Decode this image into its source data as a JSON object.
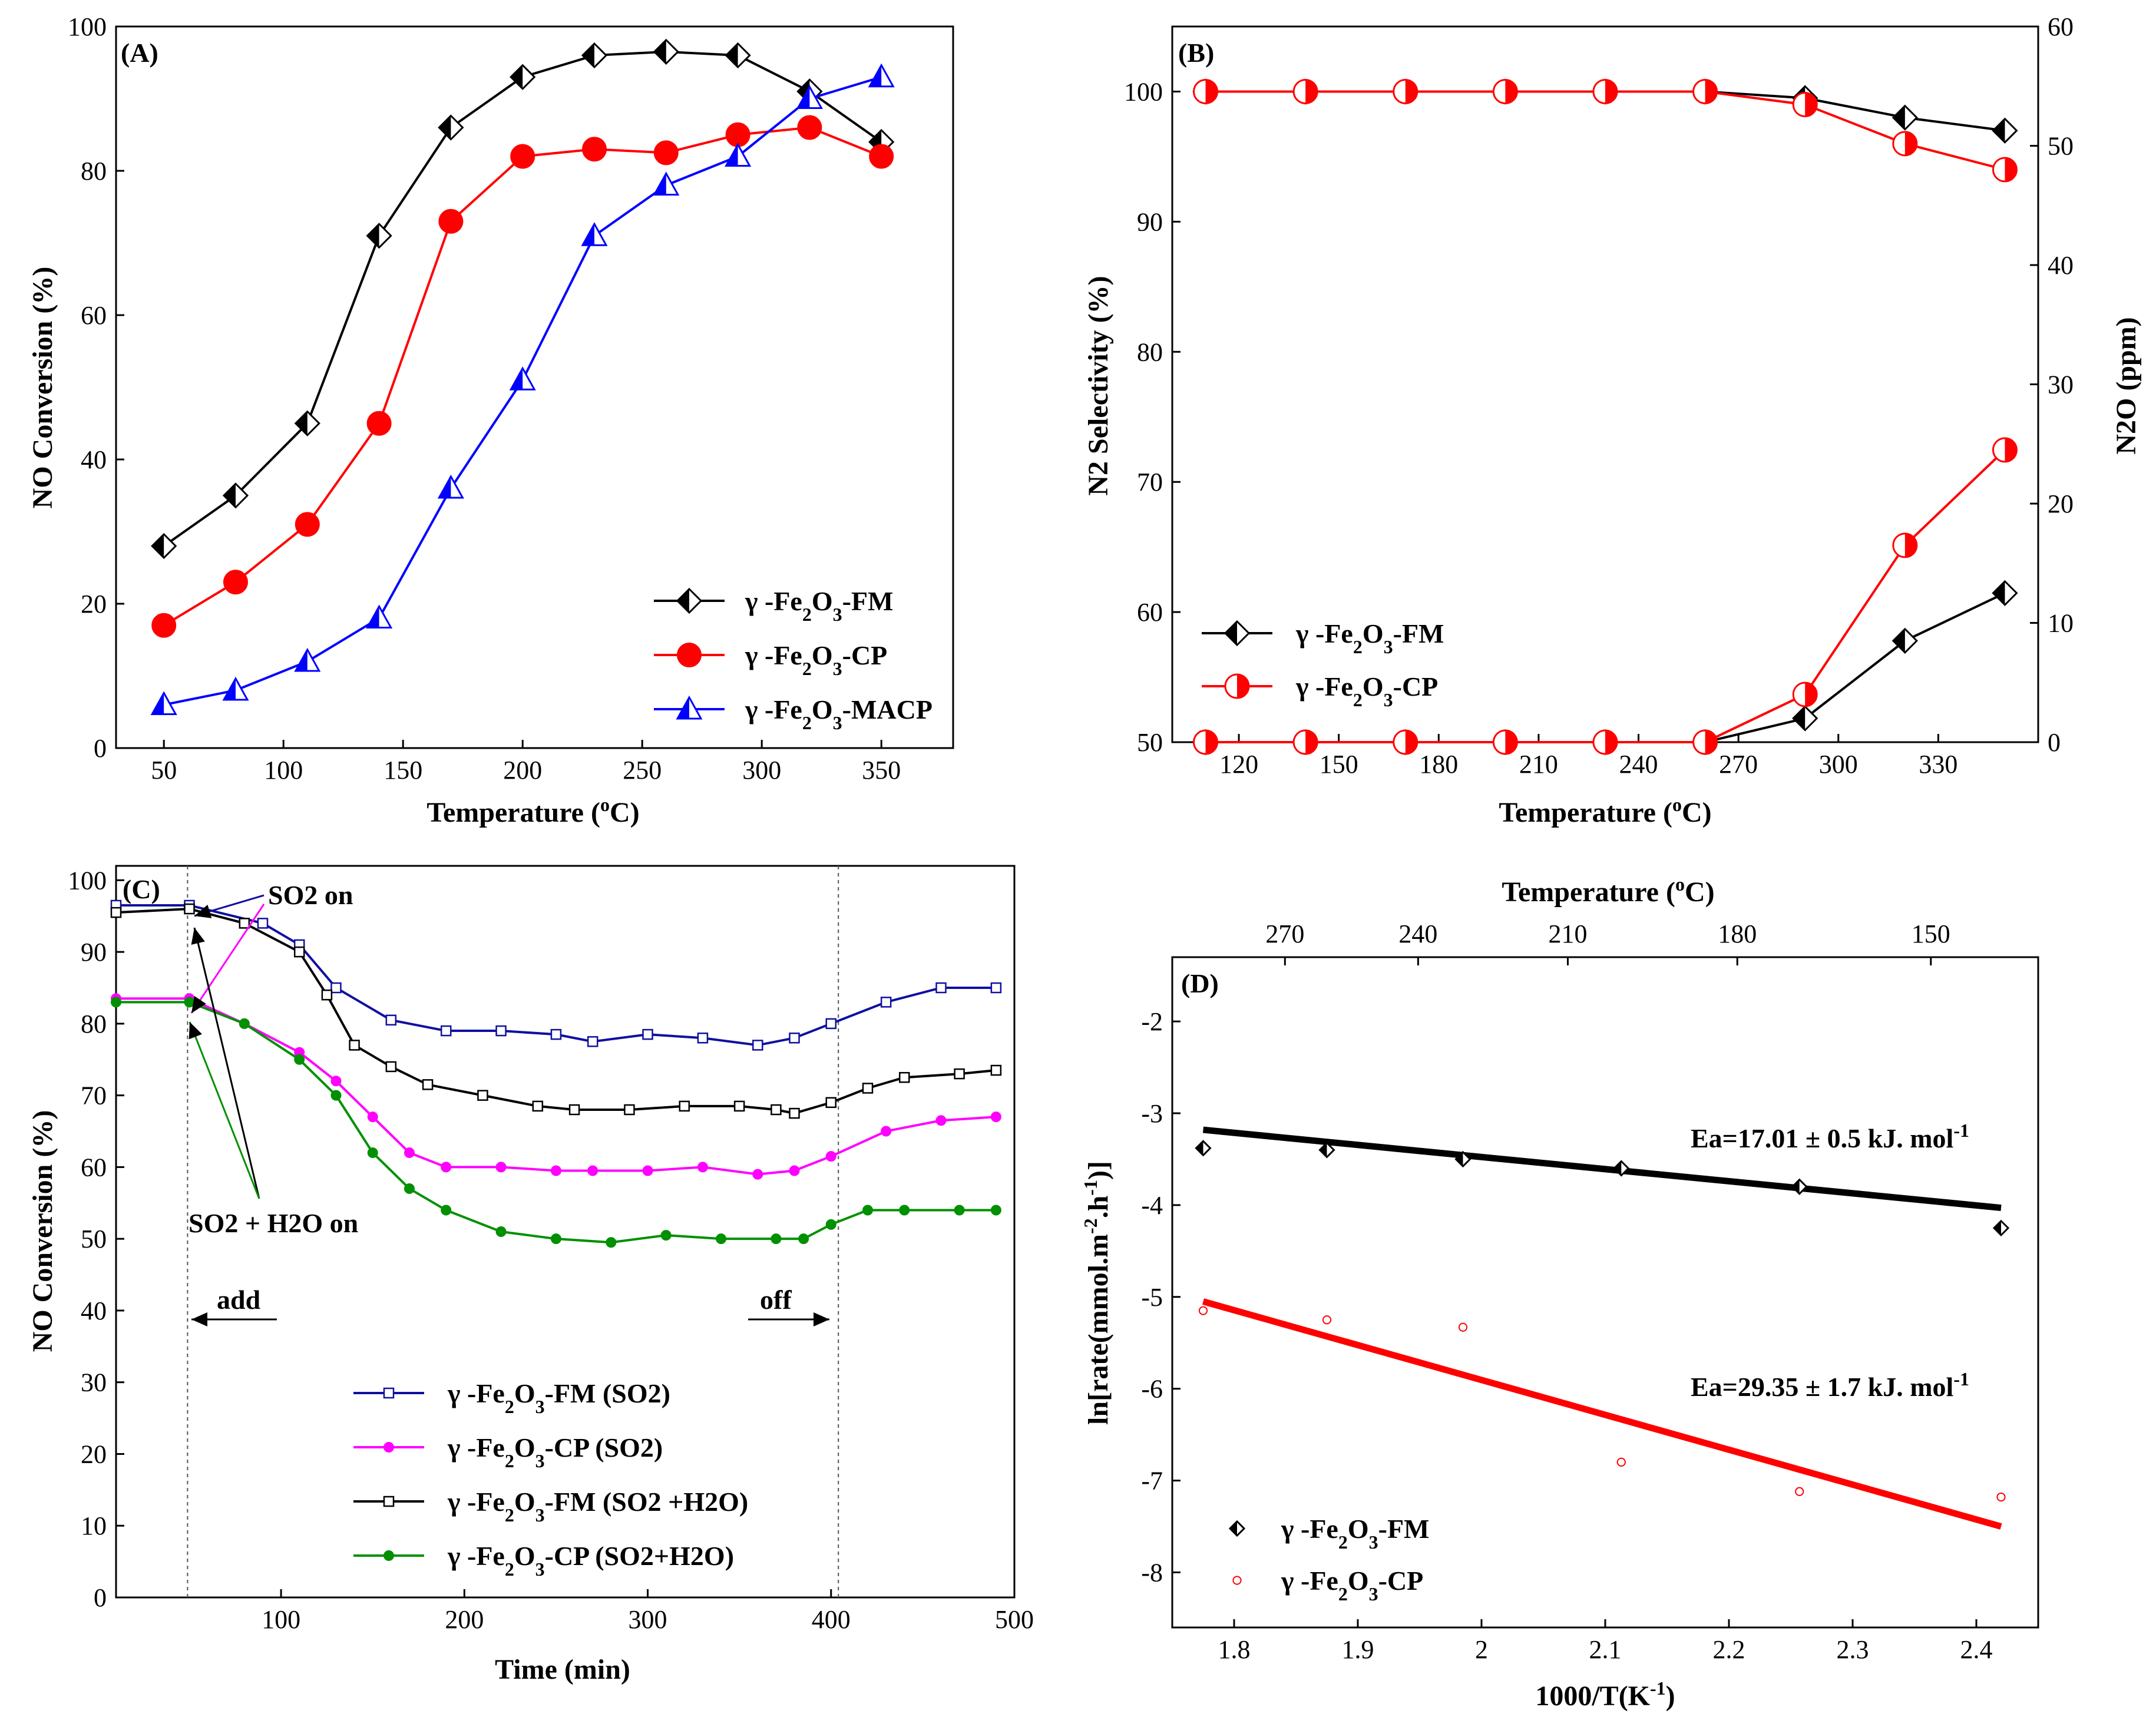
{
  "chart_data": [
    {
      "panel": "(A)",
      "type": "line",
      "xlabel": "Temperature (°C)",
      "ylabel": "NO Conversion (%)",
      "xlim": [
        30,
        380
      ],
      "ylim": [
        0,
        100
      ],
      "xticks": [
        50,
        100,
        150,
        200,
        250,
        300,
        350
      ],
      "yticks": [
        0,
        20,
        40,
        60,
        80,
        100
      ],
      "legend_position": "bottom-right",
      "series": [
        {
          "name": "γ -Fe2O3-FM",
          "legend": {
            "pre": "γ -Fe",
            "s1": "2",
            "mid": "O",
            "s2": "3",
            "post": "-FM"
          },
          "color": "#000000",
          "marker": "half-diamond",
          "x": [
            50,
            80,
            110,
            140,
            170,
            200,
            230,
            260,
            290,
            320,
            350
          ],
          "y": [
            28,
            35,
            45,
            71,
            86,
            93,
            96,
            96.5,
            96,
            91,
            84
          ]
        },
        {
          "name": "γ -Fe2O3-CP",
          "legend": {
            "pre": "γ -Fe",
            "s1": "2",
            "mid": "O",
            "s2": "3",
            "post": "-CP"
          },
          "color": "#ff0000",
          "marker": "circle",
          "x": [
            50,
            80,
            110,
            140,
            170,
            200,
            230,
            260,
            290,
            320,
            350
          ],
          "y": [
            17,
            23,
            31,
            45,
            73,
            82,
            83,
            82.5,
            85,
            86,
            82
          ]
        },
        {
          "name": "γ -Fe2O3-MACP",
          "legend": {
            "pre": "γ -Fe",
            "s1": "2",
            "mid": "O",
            "s2": "3",
            "post": "-MACP"
          },
          "color": "#0000ff",
          "marker": "half-triangle",
          "x": [
            50,
            80,
            110,
            140,
            170,
            200,
            230,
            260,
            290,
            320,
            350
          ],
          "y": [
            6,
            8,
            12,
            18,
            36,
            51,
            71,
            78,
            82,
            90,
            93
          ]
        }
      ]
    },
    {
      "panel": "(B)",
      "type": "line",
      "xlabel": "Temperature (°C)",
      "ylabel_left": "N2 Selectivity (%)",
      "ylabel_right": "N2O (ppm)",
      "xlim": [
        100,
        360
      ],
      "ylim_left": [
        50,
        105
      ],
      "ylim_right": [
        0,
        60
      ],
      "xticks": [
        120,
        150,
        180,
        210,
        240,
        270,
        300,
        330
      ],
      "yticks_left": [
        50,
        60,
        70,
        80,
        90,
        100
      ],
      "yticks_right": [
        0,
        10,
        20,
        30,
        40,
        50,
        60
      ],
      "legend_position": "bottom-left",
      "series": [
        {
          "name": "γ -Fe2O3-FM",
          "legend": {
            "pre": "γ -Fe",
            "s1": "2",
            "mid": "O",
            "s2": "3",
            "post": "-FM"
          },
          "color": "#000000",
          "marker": "half-diamond",
          "axis": "left",
          "x": [
            110,
            140,
            170,
            200,
            230,
            260,
            290,
            320,
            350
          ],
          "y": [
            100,
            100,
            100,
            100,
            100,
            100,
            99.5,
            98,
            97
          ]
        },
        {
          "name": "γ -Fe2O3-CP",
          "legend": {
            "pre": "γ -Fe",
            "s1": "2",
            "mid": "O",
            "s2": "3",
            "post": "-CP"
          },
          "color": "#ff0000",
          "marker": "half-circle",
          "axis": "left",
          "x": [
            110,
            140,
            170,
            200,
            230,
            260,
            290,
            320,
            350
          ],
          "y": [
            100,
            100,
            100,
            100,
            100,
            100,
            99,
            96,
            94
          ]
        },
        {
          "name": "γ -Fe2O3-FM N2O",
          "color": "#000000",
          "marker": "half-diamond",
          "axis": "right",
          "x": [
            110,
            140,
            170,
            200,
            230,
            260,
            290,
            320,
            350
          ],
          "y": [
            0,
            0,
            0,
            0,
            0,
            0,
            2,
            8.5,
            12.5
          ]
        },
        {
          "name": "γ -Fe2O3-CP N2O",
          "color": "#ff0000",
          "marker": "half-circle",
          "axis": "right",
          "x": [
            110,
            140,
            170,
            200,
            230,
            260,
            290,
            320,
            350
          ],
          "y": [
            0,
            0,
            0,
            0,
            0,
            0,
            4,
            16.5,
            24.5
          ]
        }
      ]
    },
    {
      "panel": "(C)",
      "type": "line",
      "xlabel": "Time (min)",
      "ylabel": "NO Conversion (%)",
      "xlim": [
        10,
        500
      ],
      "ylim": [
        0,
        102
      ],
      "xticks": [
        100,
        200,
        300,
        400,
        500
      ],
      "yticks": [
        0,
        10,
        20,
        30,
        40,
        50,
        60,
        70,
        80,
        90,
        100
      ],
      "legend_position": "bottom-center",
      "vlines": [
        49,
        404
      ],
      "annotations": {
        "so2_on": "SO2 on",
        "so2_h2o_on": "SO2 + H2O on",
        "add": "add",
        "off": "off"
      },
      "series": [
        {
          "name": "γ -Fe2O3-FM (SO2)",
          "legend": {
            "pre": "γ -Fe",
            "s1": "2",
            "mid": "O",
            "s2": "3",
            "post": "-FM (SO2)"
          },
          "color": "#1010a0",
          "marker": "square",
          "x": [
            10,
            50,
            90,
            110,
            130,
            160,
            190,
            220,
            250,
            270,
            300,
            330,
            360,
            380,
            400,
            430,
            460,
            490
          ],
          "y": [
            96.5,
            96.5,
            94,
            91,
            85,
            80.5,
            79,
            79,
            78.5,
            77.5,
            78.5,
            78,
            77,
            78,
            80,
            83,
            85,
            85
          ]
        },
        {
          "name": "γ -Fe2O3-CP (SO2)",
          "legend": {
            "pre": "γ -Fe",
            "s1": "2",
            "mid": "O",
            "s2": "3",
            "post": "-CP (SO2)"
          },
          "color": "#ff00ff",
          "marker": "circle",
          "x": [
            10,
            50,
            80,
            110,
            130,
            150,
            170,
            190,
            220,
            250,
            270,
            300,
            330,
            360,
            380,
            400,
            430,
            460,
            490
          ],
          "y": [
            83.5,
            83.5,
            80,
            76,
            72,
            67,
            62,
            60,
            60,
            59.5,
            59.5,
            59.5,
            60,
            59,
            59.5,
            61.5,
            65,
            66.5,
            67
          ]
        },
        {
          "name": "γ -Fe2O3-FM (SO2 +H2O)",
          "legend": {
            "pre": "γ -Fe",
            "s1": "2",
            "mid": "O",
            "s2": "3",
            "post": "-FM (SO2 +H2O)"
          },
          "color": "#000000",
          "marker": "square",
          "x": [
            10,
            50,
            80,
            110,
            125,
            140,
            160,
            180,
            210,
            240,
            260,
            290,
            320,
            350,
            370,
            380,
            400,
            420,
            440,
            470,
            490
          ],
          "y": [
            95.5,
            96,
            94,
            90,
            84,
            77,
            74,
            71.5,
            70,
            68.5,
            68,
            68,
            68.5,
            68.5,
            68,
            67.5,
            69,
            71,
            72.5,
            73,
            73.5
          ]
        },
        {
          "name": "γ -Fe2O3-CP (SO2+H2O)",
          "legend": {
            "pre": "γ -Fe",
            "s1": "2",
            "mid": "O",
            "s2": "3",
            "post": "-CP (SO2+H2O)"
          },
          "color": "#009000",
          "marker": "circle",
          "x": [
            10,
            50,
            80,
            110,
            130,
            150,
            170,
            190,
            220,
            250,
            280,
            310,
            340,
            370,
            385,
            400,
            420,
            440,
            470,
            490
          ],
          "y": [
            83,
            83,
            80,
            75,
            70,
            62,
            57,
            54,
            51,
            50,
            49.5,
            50.5,
            50,
            50,
            50,
            52,
            54,
            54,
            54,
            54
          ]
        }
      ]
    },
    {
      "panel": "(D)",
      "type": "scatter",
      "xlabel": "1000/T(K-1)",
      "ylabel": "ln[rate(mmol.m-2.h-1)]",
      "top_xlabel": "Temperature (°C)",
      "xlim": [
        1.75,
        2.45
      ],
      "ylim": [
        -8.6,
        -1.3
      ],
      "xticks": [
        1.8,
        1.9,
        2.0,
        2.1,
        2.2,
        2.3,
        2.4
      ],
      "yticks": [
        -8,
        -7,
        -6,
        -5,
        -4,
        -3,
        -2
      ],
      "top_ticks": [
        270,
        240,
        210,
        180,
        150
      ],
      "legend_position": "bottom-left",
      "annotations": {
        "ea_fm": "Ea=17.01 ± 0.5 kJ. mol-1",
        "ea_cp": "Ea=29.35 ± 1.7 kJ. mol-1"
      },
      "series": [
        {
          "name": "γ -Fe2O3-FM",
          "legend": {
            "pre": "γ -Fe",
            "s1": "2",
            "mid": "O",
            "s2": "3",
            "post": "-FM"
          },
          "color": "#000000",
          "marker": "half-diamond",
          "x": [
            1.775,
            1.875,
            1.985,
            2.113,
            2.257,
            2.42
          ],
          "y": [
            -3.38,
            -3.4,
            -3.5,
            -3.6,
            -3.8,
            -4.25
          ],
          "fit": {
            "x": [
              1.775,
              2.42
            ],
            "y": [
              -3.18,
              -4.03
            ]
          }
        },
        {
          "name": "γ -Fe2O3-CP",
          "legend": {
            "pre": "γ -Fe",
            "s1": "2",
            "mid": "O",
            "s2": "3",
            "post": "-CP"
          },
          "color": "#ff0000",
          "marker": "open-circle",
          "x": [
            1.775,
            1.875,
            1.985,
            2.113,
            2.257,
            2.42
          ],
          "y": [
            -5.15,
            -5.25,
            -5.33,
            -6.8,
            -7.12,
            -7.18
          ],
          "fit": {
            "x": [
              1.775,
              2.42
            ],
            "y": [
              -5.05,
              -7.5
            ]
          }
        }
      ]
    }
  ]
}
